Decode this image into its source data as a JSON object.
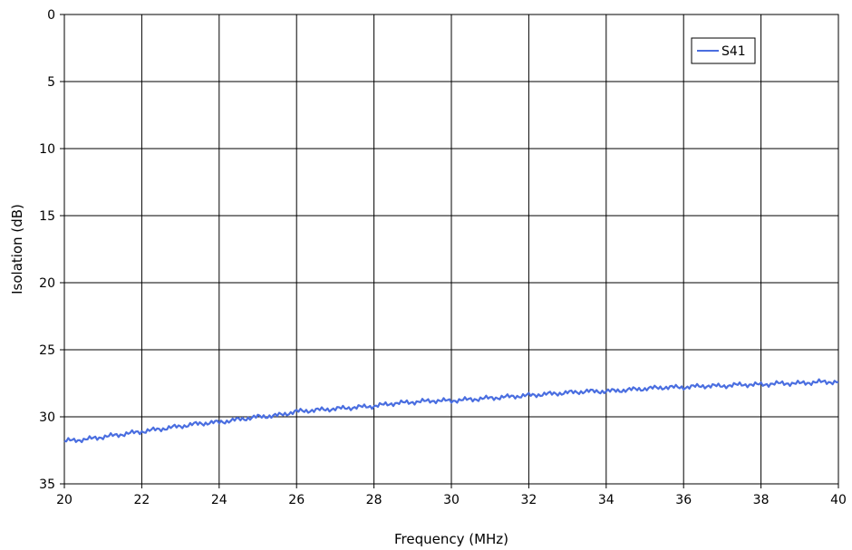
{
  "chart_data": {
    "type": "line",
    "title": "",
    "xlabel": "Frequency (MHz)",
    "ylabel": "Isolation (dB)",
    "xlim": [
      20,
      40
    ],
    "ylim": [
      0,
      35
    ],
    "y_inverted": true,
    "x_ticks": [
      20,
      22,
      24,
      26,
      28,
      30,
      32,
      34,
      36,
      38,
      40
    ],
    "y_ticks": [
      0,
      5,
      10,
      15,
      20,
      25,
      30,
      35
    ],
    "grid": true,
    "legend_position": "top-right",
    "series": [
      {
        "name": "S41",
        "color": "#4a6ee0",
        "x": [
          20,
          20.5,
          21,
          21.5,
          22,
          22.5,
          23,
          23.5,
          24,
          24.5,
          25,
          25.5,
          26,
          26.5,
          27,
          27.5,
          28,
          28.5,
          29,
          29.5,
          30,
          30.5,
          31,
          31.5,
          32,
          32.5,
          33,
          33.5,
          34,
          34.5,
          35,
          35.5,
          36,
          36.5,
          37,
          37.5,
          38,
          38.5,
          39,
          39.5,
          40
        ],
        "y": [
          31.8,
          31.7,
          31.5,
          31.3,
          31.1,
          30.9,
          30.7,
          30.5,
          30.4,
          30.2,
          30.0,
          29.9,
          29.6,
          29.5,
          29.4,
          29.3,
          29.2,
          29.0,
          28.9,
          28.8,
          28.8,
          28.7,
          28.6,
          28.5,
          28.4,
          28.3,
          28.2,
          28.1,
          28.1,
          28.0,
          27.9,
          27.8,
          27.8,
          27.7,
          27.7,
          27.6,
          27.6,
          27.5,
          27.5,
          27.4,
          27.4
        ]
      }
    ]
  }
}
